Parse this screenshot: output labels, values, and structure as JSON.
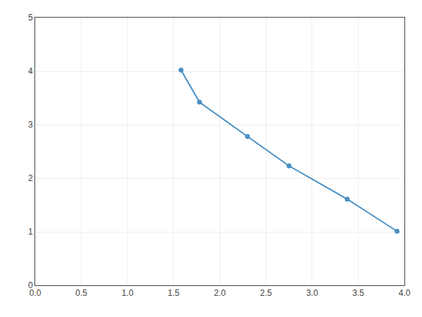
{
  "chart_data": {
    "type": "line",
    "x": [
      1.58,
      1.78,
      2.3,
      2.75,
      3.38,
      3.92
    ],
    "values": [
      4.02,
      3.42,
      2.78,
      2.23,
      1.61,
      1.01
    ],
    "color": "#4A90C4",
    "marker": "circle",
    "xlim": [
      0.0,
      4.0
    ],
    "ylim": [
      0,
      5
    ],
    "xticks": [
      {
        "value": 0.0,
        "label": "0.0"
      },
      0.5,
      {
        "value": 1.0,
        "label": "1.0"
      },
      1.5,
      {
        "value": 2.0,
        "label": "2.0"
      },
      2.5,
      {
        "value": 3.0,
        "label": "3.0"
      },
      3.5,
      {
        "value": 4.0,
        "label": "4.0"
      }
    ],
    "yticks": [
      0,
      1,
      2,
      3,
      4,
      5
    ],
    "grid": true
  }
}
